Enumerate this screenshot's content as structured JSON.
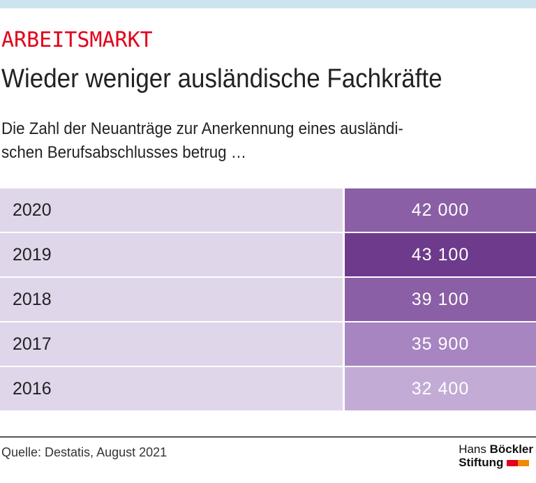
{
  "header": {
    "kicker": "ARBEITSMARKT",
    "title": "Wieder weniger ausländische Fachkräfte",
    "subtitle_line1": "Die Zahl der Neuanträge zur Anerkennung eines ausländi-",
    "subtitle_line2": "schen Berufsabschlusses betrug …"
  },
  "chart_data": {
    "type": "table",
    "rows": [
      {
        "year": "2020",
        "value": "42 000",
        "color": "#8b5fa6"
      },
      {
        "year": "2019",
        "value": "43 100",
        "color": "#6e3a8c"
      },
      {
        "year": "2018",
        "value": "39 100",
        "color": "#8b5fa6"
      },
      {
        "year": "2017",
        "value": "35 900",
        "color": "#a685c0"
      },
      {
        "year": "2016",
        "value": "32 400",
        "color": "#c2acd6"
      }
    ]
  },
  "footer": {
    "source": "Quelle: Destatis, August 2021",
    "logo_line1a": "Hans ",
    "logo_line1b": "Böckler",
    "logo_line2": "Stiftung"
  },
  "colors": {
    "kicker": "#e2001a",
    "year_cell": "#e0d6ea",
    "top_bar": "#cde4ee",
    "logo_red": "#e2001a",
    "logo_orange": "#f08a00"
  }
}
